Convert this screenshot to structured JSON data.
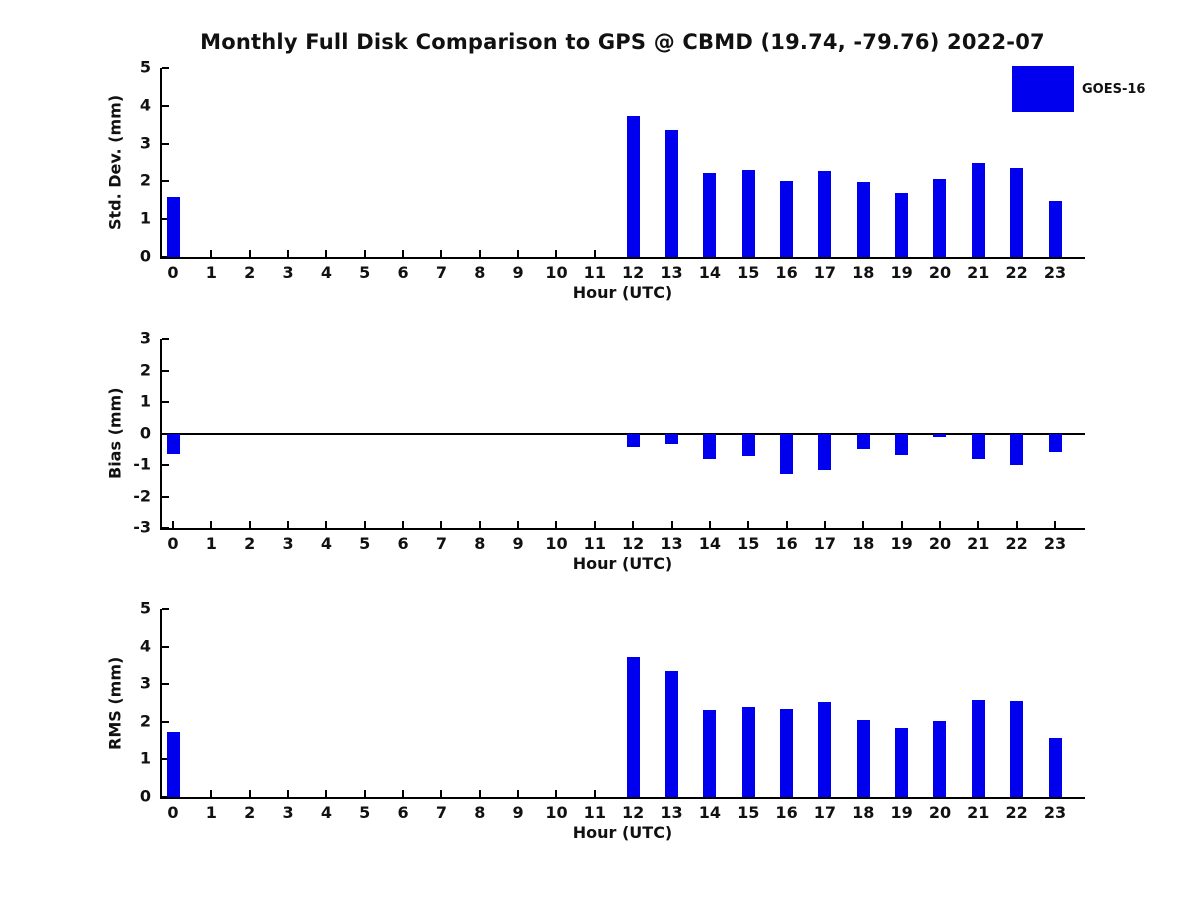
{
  "figure": {
    "title": "Monthly Full Disk Comparison to GPS @ CBMD (19.74, -79.76) 2022-07"
  },
  "legend": {
    "label": "GOES-16",
    "color": "#0000ee",
    "position": "upper-right"
  },
  "chart_data": [
    {
      "type": "bar",
      "series_name": "GOES-16",
      "ylabel": "Std. Dev. (mm)",
      "xlabel": "Hour (UTC)",
      "categories": [
        0,
        1,
        2,
        3,
        4,
        5,
        6,
        7,
        8,
        9,
        10,
        11,
        12,
        13,
        14,
        15,
        16,
        17,
        18,
        19,
        20,
        21,
        22,
        23
      ],
      "values": [
        1.6,
        null,
        null,
        null,
        null,
        null,
        null,
        null,
        null,
        null,
        null,
        null,
        3.73,
        3.36,
        2.22,
        2.3,
        2.0,
        2.28,
        1.98,
        1.7,
        2.07,
        2.48,
        2.36,
        1.48
      ],
      "ylim": [
        0,
        5
      ],
      "yticks": [
        0,
        1,
        2,
        3,
        4,
        5
      ],
      "grid": false
    },
    {
      "type": "bar",
      "series_name": "GOES-16",
      "ylabel": "Bias (mm)",
      "xlabel": "Hour (UTC)",
      "categories": [
        0,
        1,
        2,
        3,
        4,
        5,
        6,
        7,
        8,
        9,
        10,
        11,
        12,
        13,
        14,
        15,
        16,
        17,
        18,
        19,
        20,
        21,
        22,
        23
      ],
      "values": [
        -0.65,
        null,
        null,
        null,
        null,
        null,
        null,
        null,
        null,
        null,
        null,
        null,
        -0.42,
        -0.32,
        -0.8,
        -0.73,
        -1.28,
        -1.15,
        -0.5,
        -0.68,
        -0.1,
        -0.8,
        -1.0,
        -0.58
      ],
      "ylim": [
        -3,
        3
      ],
      "yticks": [
        -3,
        -2,
        -1,
        0,
        1,
        2,
        3
      ],
      "zero_line": true,
      "grid": false
    },
    {
      "type": "bar",
      "series_name": "GOES-16",
      "ylabel": "RMS (mm)",
      "xlabel": "Hour (UTC)",
      "categories": [
        0,
        1,
        2,
        3,
        4,
        5,
        6,
        7,
        8,
        9,
        10,
        11,
        12,
        13,
        14,
        15,
        16,
        17,
        18,
        19,
        20,
        21,
        22,
        23
      ],
      "values": [
        1.72,
        null,
        null,
        null,
        null,
        null,
        null,
        null,
        null,
        null,
        null,
        null,
        3.72,
        3.35,
        2.32,
        2.4,
        2.35,
        2.52,
        2.04,
        1.83,
        2.03,
        2.58,
        2.55,
        1.58
      ],
      "ylim": [
        0,
        5
      ],
      "yticks": [
        0,
        1,
        2,
        3,
        4,
        5
      ],
      "grid": false
    }
  ]
}
